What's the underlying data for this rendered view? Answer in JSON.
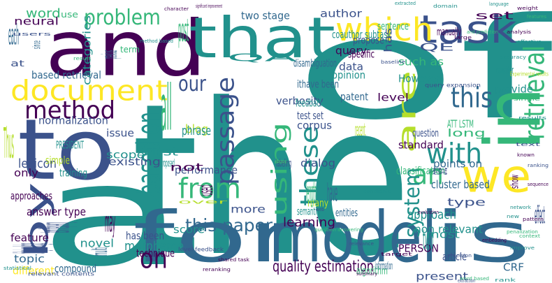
{
  "palette": {
    "background": "#ffffff",
    "dark_purple": "#440154",
    "indigo": "#3b528b",
    "slate_blue": "#31688e",
    "teal": "#21918c",
    "green": "#35b779",
    "light_green": "#6ece58",
    "yellow_green": "#b5de2b",
    "yellow": "#fde725"
  },
  "words": [
    {
      "text": "the",
      "color": "#21918c",
      "weight": 48,
      "rot": 0
    },
    {
      "text": "a",
      "color": "#21918c",
      "weight": 40,
      "rot": 0
    },
    {
      "text": "of",
      "color": "#21918c",
      "weight": 38,
      "rot": 0
    },
    {
      "text": "and",
      "color": "#440154",
      "weight": 30,
      "rot": 0
    },
    {
      "text": "for",
      "color": "#31688e",
      "weight": 26,
      "rot": 0
    },
    {
      "text": "model",
      "color": "#31688e",
      "weight": 26,
      "rot": 0
    },
    {
      "text": "is",
      "color": "#31688e",
      "weight": 26,
      "rot": 0
    },
    {
      "text": "to",
      "color": "#3b528b",
      "weight": 26,
      "rot": 0
    },
    {
      "text": "that",
      "color": "#21918c",
      "weight": 26,
      "rot": 0
    },
    {
      "text": "in",
      "color": "#35b779",
      "weight": 22,
      "rot": -90
    },
    {
      "text": "we",
      "color": "#fde725",
      "weight": 20,
      "rot": 0
    },
    {
      "text": "document",
      "color": "#fde725",
      "weight": 12,
      "rot": 0
    },
    {
      "text": "task",
      "color": "#3b528b",
      "weight": 12,
      "rot": 0
    },
    {
      "text": "which",
      "color": "#fde725",
      "weight": 12,
      "rot": 0
    },
    {
      "text": "retrieval",
      "color": "#35b779",
      "weight": 11,
      "rot": -90
    },
    {
      "text": "are",
      "color": "#b5de2b",
      "weight": 11,
      "rot": -90
    },
    {
      "text": "passage",
      "color": "#3b528b",
      "weight": 10,
      "rot": -90
    },
    {
      "text": "from",
      "color": "#35b779",
      "weight": 10,
      "rot": 0
    },
    {
      "text": "these",
      "color": "#21918c",
      "weight": 10,
      "rot": -90
    },
    {
      "text": "an",
      "color": "#35b779",
      "weight": 10,
      "rot": 0
    },
    {
      "text": "with",
      "color": "#21918c",
      "weight": 10,
      "rot": 0
    },
    {
      "text": "system",
      "color": "#21918c",
      "weight": 10,
      "rot": -90
    },
    {
      "text": "using",
      "color": "#35b779",
      "weight": 10,
      "rot": -90
    },
    {
      "text": "method",
      "color": "#440154",
      "weight": 9,
      "rot": 0
    },
    {
      "text": "our",
      "color": "#3b528b",
      "weight": 9,
      "rot": 0
    },
    {
      "text": "this",
      "color": "#31688e",
      "weight": 9,
      "rot": 0
    },
    {
      "text": "based on",
      "color": "#21918c",
      "weight": 9,
      "rot": -90
    },
    {
      "text": "by",
      "color": "#3b528b",
      "weight": 9,
      "rot": -90
    },
    {
      "text": "on",
      "color": "#440154",
      "weight": 9,
      "rot": 0
    },
    {
      "text": "problem",
      "color": "#35b779",
      "weight": 8,
      "rot": 0
    },
    {
      "text": "this paper",
      "color": "#31688e",
      "weight": 7,
      "rot": 0
    },
    {
      "text": "quality estimation",
      "color": "#440154",
      "weight": 6,
      "rot": 0
    },
    {
      "text": "normalization",
      "color": "#3b528b",
      "weight": 5,
      "rot": 0
    },
    {
      "text": "performance",
      "color": "#3b528b",
      "weight": 5,
      "rot": 0
    },
    {
      "text": "morpheme",
      "color": "#21918c",
      "weight": 5,
      "rot": 0
    },
    {
      "text": "word",
      "color": "#35b779",
      "weight": 5,
      "rot": 0
    },
    {
      "text": "blog",
      "color": "#b5de2b",
      "weight": 5,
      "rot": 0
    },
    {
      "text": "approach",
      "color": "#21918c",
      "weight": 5,
      "rot": 0
    },
    {
      "text": "learning",
      "color": "#440154",
      "weight": 5,
      "rot": 0
    },
    {
      "text": "phrase",
      "color": "#21918c",
      "weight": 5,
      "rot": 0
    },
    {
      "text": "such as",
      "color": "#35b779",
      "weight": 5,
      "rot": 0
    },
    {
      "text": "However",
      "color": "#21918c",
      "weight": 4,
      "rot": 0
    },
    {
      "text": "opinion",
      "color": "#21918c",
      "weight": 4,
      "rot": 0
    },
    {
      "text": "query",
      "color": "#440154",
      "weight": 4,
      "rot": 0
    },
    {
      "text": "propose",
      "color": "#3b528b",
      "weight": 4,
      "rot": 0
    },
    {
      "text": "based retrieval",
      "color": "#31688e",
      "weight": 4,
      "rot": 0
    },
    {
      "text": "lexicon",
      "color": "#3b528b",
      "weight": 4,
      "rot": 0
    },
    {
      "text": "approaches",
      "color": "#440154",
      "weight": 4,
      "rot": 0
    },
    {
      "text": "topic",
      "color": "#31688e",
      "weight": 4,
      "rot": 0
    },
    {
      "text": "different",
      "color": "#fde725",
      "weight": 4,
      "rot": 0
    },
    {
      "text": "answer type",
      "color": "#440154",
      "weight": 4,
      "rot": 0
    },
    {
      "text": "a novel",
      "color": "#21918c",
      "weight": 4,
      "rot": 0
    },
    {
      "text": "cluster based",
      "color": "#31688e",
      "weight": 4,
      "rot": 0
    },
    {
      "text": "classification",
      "color": "#35b779",
      "weight": 4,
      "rot": 0
    },
    {
      "text": "verbosity",
      "color": "#3b528b",
      "weight": 4,
      "rot": 0
    },
    {
      "text": "PERSON",
      "color": "#440154",
      "weight": 4,
      "rot": 0
    },
    {
      "text": "non relevant",
      "color": "#21918c",
      "weight": 4,
      "rot": 0
    },
    {
      "text": "CRF",
      "color": "#31688e",
      "weight": 3,
      "rot": 0
    },
    {
      "text": "all",
      "color": "#35b779",
      "weight": 3,
      "rot": 0
    },
    {
      "text": "term frequency",
      "color": "#3b528b",
      "weight": 3,
      "rot": -90
    },
    {
      "text": "feature",
      "color": "#440154",
      "weight": 3,
      "rot": 0
    },
    {
      "text": "training",
      "color": "#21918c",
      "weight": 3,
      "rot": 0
    },
    {
      "text": "score",
      "color": "#21918c",
      "weight": 3,
      "rot": 0
    },
    {
      "text": "First",
      "color": "#21918c",
      "weight": 3,
      "rot": 0
    },
    {
      "text": "proposed",
      "color": "#21918c",
      "weight": 3,
      "rot": 0
    },
    {
      "text": "not",
      "color": "#440154",
      "weight": 3,
      "rot": 0
    },
    {
      "text": "dialog",
      "color": "#3b528b",
      "weight": 3,
      "rot": 0
    },
    {
      "text": "labeling",
      "color": "#3b528b",
      "weight": 3,
      "rot": 0
    },
    {
      "text": "QA",
      "color": "#21918c",
      "weight": 3,
      "rot": 0
    },
    {
      "text": "coauthor subtask",
      "color": "#21918c",
      "weight": 3,
      "rot": 0
    },
    {
      "text": "disambiguation",
      "color": "#31688e",
      "weight": 3,
      "rot": 0
    },
    {
      "text": "ithave been",
      "color": "#31688e",
      "weight": 3,
      "rot": 0
    },
    {
      "text": "feedback",
      "color": "#21918c",
      "weight": 3,
      "rot": 0
    },
    {
      "text": "test set",
      "color": "#3b528b",
      "weight": 3,
      "rot": 0
    },
    {
      "text": "patent",
      "color": "#31688e",
      "weight": 3,
      "rot": 0
    },
    {
      "text": "corpus",
      "color": "#3b528b",
      "weight": 3,
      "rot": 0
    },
    {
      "text": "specific",
      "color": "#440154",
      "weight": 3,
      "rot": 0
    },
    {
      "text": "data",
      "color": "#3b528b",
      "weight": 3,
      "rot": 0
    },
    {
      "text": "level",
      "color": "#440154",
      "weight": 3,
      "rot": 0
    },
    {
      "text": "neural",
      "color": "#440154",
      "weight": 3,
      "rot": 0
    },
    {
      "text": "two stage",
      "color": "#31688e",
      "weight": 3,
      "rot": 0
    },
    {
      "text": "sentence",
      "color": "#35b779",
      "weight": 3,
      "rot": 0
    },
    {
      "text": "author",
      "color": "#3b528b",
      "weight": 3,
      "rot": 0
    },
    {
      "text": "standard",
      "color": "#440154",
      "weight": 3,
      "rot": 0
    },
    {
      "text": "question",
      "color": "#3b528b",
      "weight": 3,
      "rot": 0
    },
    {
      "text": "long",
      "color": "#35b779",
      "weight": 3,
      "rot": 0
    },
    {
      "text": "points on",
      "color": "#31688e",
      "weight": 3,
      "rot": 0
    },
    {
      "text": "ATT LSTM",
      "color": "#35b779",
      "weight": 3,
      "rot": 0
    },
    {
      "text": "most",
      "color": "#21918c",
      "weight": 3,
      "rot": 0
    },
    {
      "text": "article",
      "color": "#3b528b",
      "weight": 3,
      "rot": 0
    },
    {
      "text": "type",
      "color": "#3b528b",
      "weight": 3,
      "rot": 0
    },
    {
      "text": "semantic",
      "color": "#21918c",
      "weight": 3,
      "rot": 0
    },
    {
      "text": "more",
      "color": "#3b528b",
      "weight": 3,
      "rot": 0
    },
    {
      "text": "entities",
      "color": "#31688e",
      "weight": 3,
      "rot": 0
    },
    {
      "text": "many",
      "color": "#b5de2b",
      "weight": 3,
      "rot": 0
    },
    {
      "text": "QE",
      "color": "#3b528b",
      "weight": 3,
      "rot": 0
    },
    {
      "text": "provide",
      "color": "#21918c",
      "weight": 3,
      "rot": 0
    },
    {
      "text": "consider",
      "color": "#21918c",
      "weight": 3,
      "rot": 0
    },
    {
      "text": "set",
      "color": "#440154",
      "weight": 3,
      "rot": 0
    },
    {
      "text": "manually",
      "color": "#440154",
      "weight": 3,
      "rot": 0
    },
    {
      "text": "issue",
      "color": "#3b528b",
      "weight": 3,
      "rot": 0
    },
    {
      "text": "scope",
      "color": "#21918c",
      "weight": 3,
      "rot": 0
    },
    {
      "text": "existing",
      "color": "#3b528b",
      "weight": 3,
      "rot": 0
    },
    {
      "text": "PRESIDENT",
      "color": "#21918c",
      "weight": 3,
      "rot": 0
    },
    {
      "text": "simple",
      "color": "#b5de2b",
      "weight": 3,
      "rot": 0
    },
    {
      "text": "only",
      "color": "#440154",
      "weight": 3,
      "rot": 0
    },
    {
      "text": "Thus",
      "color": "#b5de2b",
      "weight": 3,
      "rot": 0
    },
    {
      "text": "categories",
      "color": "#21918c",
      "weight": 3,
      "rot": -90
    },
    {
      "text": "dialog knowledge",
      "color": "#3b528b",
      "weight": 3,
      "rot": -90
    },
    {
      "text": "compound",
      "color": "#31688e",
      "weight": 3,
      "rot": 0
    },
    {
      "text": "technique",
      "color": "#440154",
      "weight": 3,
      "rot": 0
    },
    {
      "text": "has been",
      "color": "#3b528b",
      "weight": 3,
      "rot": 0
    },
    {
      "text": "algorithm",
      "color": "#35b779",
      "weight": 3,
      "rot": 0
    },
    {
      "text": "present",
      "color": "#3b528b",
      "weight": 3,
      "rot": 0
    },
    {
      "text": "information",
      "color": "#31688e",
      "weight": 3,
      "rot": 0
    },
    {
      "text": "two",
      "color": "#21918c",
      "weight": 3,
      "rot": 0
    },
    {
      "text": "length",
      "color": "#35b779",
      "weight": 3,
      "rot": 0
    },
    {
      "text": "have",
      "color": "#31688e",
      "weight": 3,
      "rot": 0
    },
    {
      "text": "effect",
      "color": "#3b528b",
      "weight": 3,
      "rot": 0
    },
    {
      "text": "show",
      "color": "#440154",
      "weight": 3,
      "rot": -90
    },
    {
      "text": "site",
      "color": "#3b528b",
      "weight": 2,
      "rot": -90
    },
    {
      "text": "recent",
      "color": "#b5de2b",
      "weight": 2,
      "rot": 0
    },
    {
      "text": "has",
      "color": "#3b528b",
      "weight": 2,
      "rot": -90
    },
    {
      "text": "used",
      "color": "#440154",
      "weight": 2,
      "rot": -90
    },
    {
      "text": "term",
      "color": "#35b779",
      "weight": 2,
      "rot": 0
    },
    {
      "text": "post",
      "color": "#35b779",
      "weight": 2,
      "rot": 0
    },
    {
      "text": "previous",
      "color": "#31688e",
      "weight": 2,
      "rot": -90
    },
    {
      "text": "each",
      "color": "#31688e",
      "weight": 2,
      "rot": 0
    },
    {
      "text": "since",
      "color": "#31688e",
      "weight": 2,
      "rot": -90
    },
    {
      "text": "at",
      "color": "#3b528b",
      "weight": 2,
      "rot": 0
    },
    {
      "text": "use",
      "color": "#35b779",
      "weight": 2,
      "rot": 0
    },
    {
      "text": "may",
      "color": "#440154",
      "weight": 2,
      "rot": 0
    },
    {
      "text": "multi",
      "color": "#31688e",
      "weight": 2,
      "rot": -90
    },
    {
      "text": "over",
      "color": "#b5de2b",
      "weight": 2,
      "rot": 0
    },
    {
      "text": "query expansion",
      "color": "#3b528b",
      "weight": 1,
      "rot": 0
    },
    {
      "text": "Experimental results",
      "color": "#b5de2b",
      "weight": 1,
      "rot": 0
    },
    {
      "text": "level feedback",
      "color": "#3b528b",
      "weight": 1,
      "rot": 0
    },
    {
      "text": "relevant contents",
      "color": "#3b528b",
      "weight": 1,
      "rot": 0
    },
    {
      "text": "significant improvement",
      "color": "#440154",
      "weight": 1,
      "rot": 0
    },
    {
      "text": "character",
      "color": "#440154",
      "weight": 1,
      "rot": 0
    },
    {
      "text": "extracted",
      "color": "#21918c",
      "weight": 1,
      "rot": 0
    },
    {
      "text": "domain",
      "color": "#21918c",
      "weight": 1,
      "rot": 0
    },
    {
      "text": "language",
      "color": "#21918c",
      "weight": 1,
      "rot": 0
    },
    {
      "text": "weight",
      "color": "#440154",
      "weight": 1,
      "rot": 0
    },
    {
      "text": "features",
      "color": "#35b779",
      "weight": 1,
      "rot": 0
    },
    {
      "text": "method based",
      "color": "#21918c",
      "weight": 1,
      "rot": 0
    },
    {
      "text": "large",
      "color": "#440154",
      "weight": 1,
      "rot": 0
    },
    {
      "text": "analysis",
      "color": "#440154",
      "weight": 1,
      "rot": 0
    },
    {
      "text": "result",
      "color": "#35b779",
      "weight": 1,
      "rot": 0
    },
    {
      "text": "statistical",
      "color": "#21918c",
      "weight": 1,
      "rot": 0
    },
    {
      "text": "precision",
      "color": "#3b528b",
      "weight": 1,
      "rot": 0
    },
    {
      "text": "word based",
      "color": "#35b779",
      "weight": 1,
      "rot": 0
    },
    {
      "text": "known",
      "color": "#440154",
      "weight": 1,
      "rot": 0
    },
    {
      "text": "ranking",
      "color": "#3b528b",
      "weight": 1,
      "rot": 0
    },
    {
      "text": "new",
      "color": "#21918c",
      "weight": 1,
      "rot": 0
    },
    {
      "text": "context",
      "color": "#35b779",
      "weight": 1,
      "rot": 0
    },
    {
      "text": "shared task",
      "color": "#440154",
      "weight": 1,
      "rot": 0
    },
    {
      "text": "candidate",
      "color": "#21918c",
      "weight": 1,
      "rot": 0
    },
    {
      "text": "evaluation",
      "color": "#440154",
      "weight": 1,
      "rot": 0
    },
    {
      "text": "accuracy",
      "color": "#21918c",
      "weight": 1,
      "rot": 0
    },
    {
      "text": "users",
      "color": "#3b528b",
      "weight": 1,
      "rot": 0
    },
    {
      "text": "question answering",
      "color": "#35b779",
      "weight": 1,
      "rot": 0
    },
    {
      "text": "pattern",
      "color": "#440154",
      "weight": 1,
      "rot": 0
    },
    {
      "text": "improve",
      "color": "#21918c",
      "weight": 1,
      "rot": 0
    },
    {
      "text": "relevance",
      "color": "#3b528b",
      "weight": 1,
      "rot": 0
    },
    {
      "text": "sequence",
      "color": "#440154",
      "weight": 1,
      "rot": 0
    },
    {
      "text": "network",
      "color": "#21918c",
      "weight": 1,
      "rot": 0
    },
    {
      "text": "and prediction",
      "color": "#35b779",
      "weight": 1,
      "rot": 0
    },
    {
      "text": "target",
      "color": "#440154",
      "weight": 1,
      "rot": 0
    },
    {
      "text": "web",
      "color": "#3b528b",
      "weight": 1,
      "rot": 0
    },
    {
      "text": "effective",
      "color": "#21918c",
      "weight": 1,
      "rot": 0
    },
    {
      "text": "penalization",
      "color": "#35b779",
      "weight": 1,
      "rot": 0
    },
    {
      "text": "embedding",
      "color": "#440154",
      "weight": 1,
      "rot": 0
    },
    {
      "text": "baseline",
      "color": "#3b528b",
      "weight": 1,
      "rot": 0
    },
    {
      "text": "rank",
      "color": "#21918c",
      "weight": 1,
      "rot": 0
    },
    {
      "text": "reranking",
      "color": "#440154",
      "weight": 1,
      "rot": 0
    },
    {
      "text": "extraction",
      "color": "#3b528b",
      "weight": 1,
      "rot": 0
    },
    {
      "text": "single",
      "color": "#35b779",
      "weight": 1,
      "rot": 0
    },
    {
      "text": "results",
      "color": "#21918c",
      "weight": 1,
      "rot": 0
    },
    {
      "text": "summary",
      "color": "#440154",
      "weight": 1,
      "rot": 0
    },
    {
      "text": "text",
      "color": "#3b528b",
      "weight": 1,
      "rot": 0
    }
  ]
}
